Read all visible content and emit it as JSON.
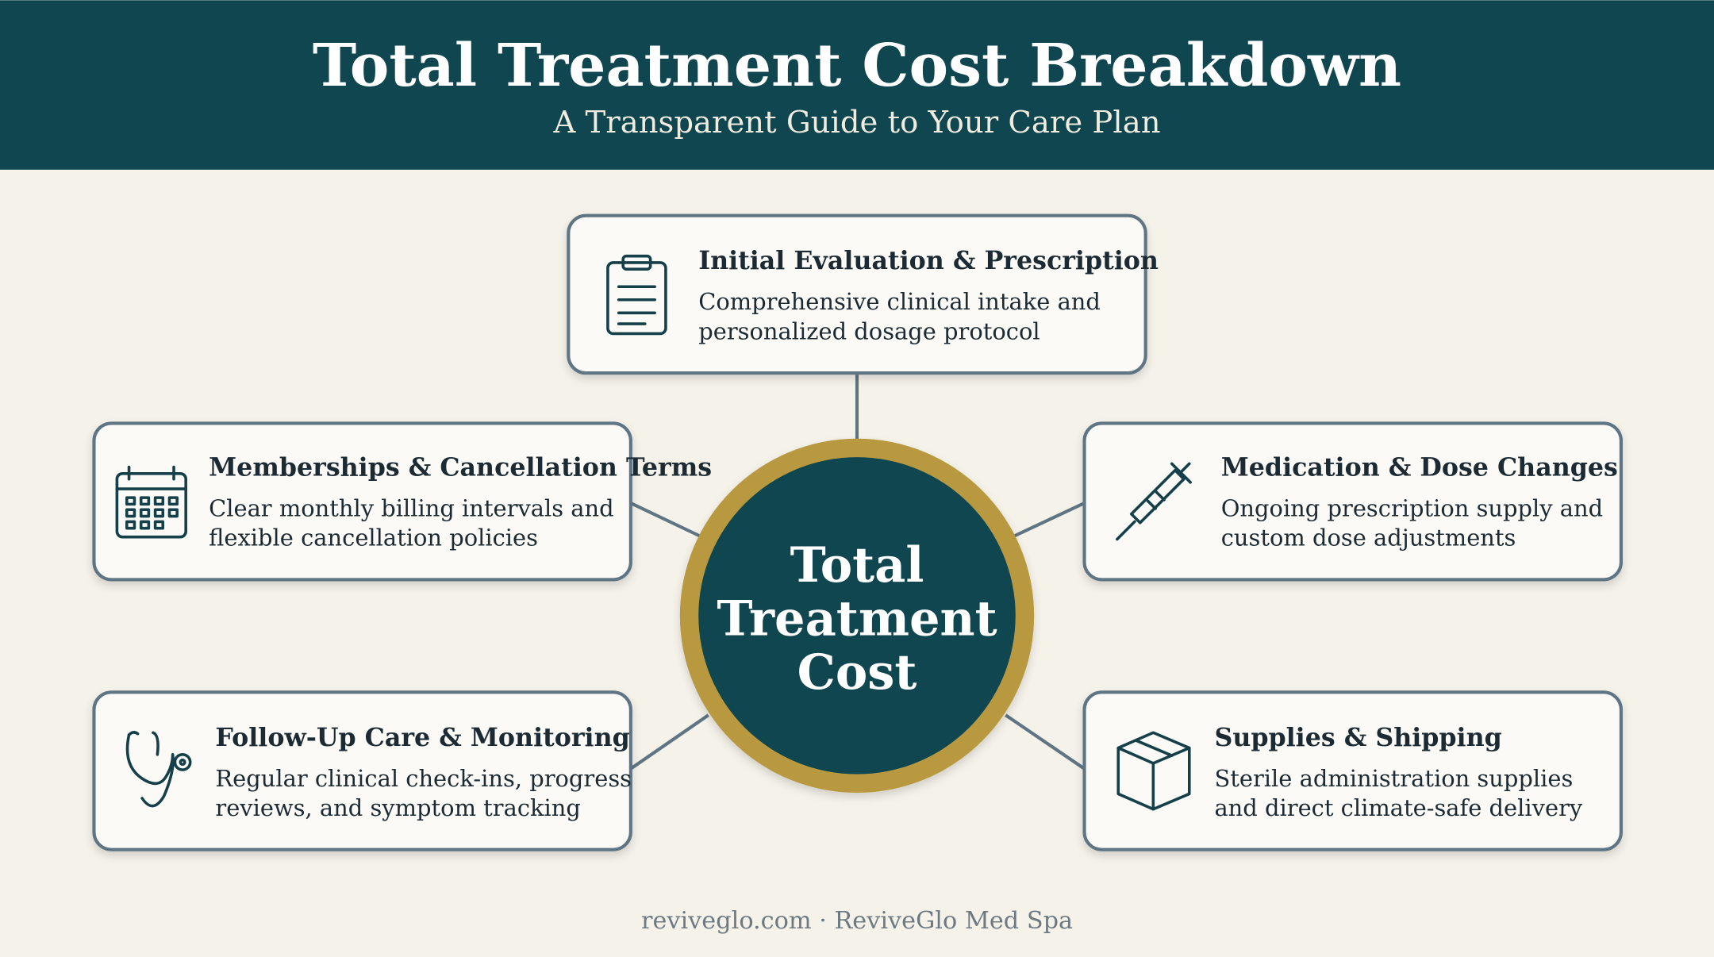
{
  "header": {
    "title": "Total Treatment Cost Breakdown",
    "subtitle": "A Transparent Guide to Your Care Plan"
  },
  "center": {
    "lines": [
      "Total",
      "Treatment",
      "Cost"
    ]
  },
  "nodes": [
    {
      "title": "Initial Evaluation & Prescription",
      "description": [
        "Comprehensive clinical intake and",
        "personalized dosage protocol"
      ]
    },
    {
      "title": "Memberships & Cancellation Terms",
      "description": [
        "Clear monthly billing intervals and",
        "flexible cancellation policies"
      ]
    },
    {
      "title": "Medication & Dose Changes",
      "description": [
        "Ongoing prescription supply and",
        "custom dose adjustments"
      ]
    },
    {
      "title": "Follow-Up Care & Monitoring",
      "description": [
        "Regular clinical check-ins, progress",
        "reviews, and symptom tracking"
      ]
    },
    {
      "title": "Supplies & Shipping",
      "description": [
        "Sterile administration supplies",
        "and direct climate-safe delivery"
      ]
    }
  ],
  "footer": "reviveglo.com · ReviveGlo Med Spa"
}
